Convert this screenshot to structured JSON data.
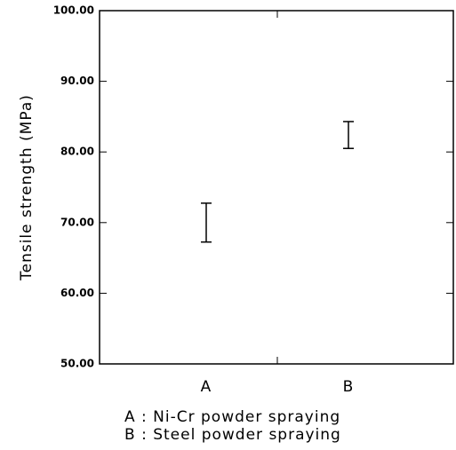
{
  "chart_data": {
    "type": "errorbar",
    "ylabel": "Tensile strength (MPa)",
    "categories": [
      "A",
      "B"
    ],
    "series": [
      {
        "color": "#000000",
        "values": [
          70,
          82.4
        ],
        "errors": [
          2.75,
          1.9
        ]
      }
    ],
    "ylim": [
      50,
      100
    ],
    "yticks": [
      {
        "value": 50,
        "label": "50.00"
      },
      {
        "value": 60,
        "label": "60.00"
      },
      {
        "value": 70,
        "label": "70.00"
      },
      {
        "value": 80,
        "label": "80.00"
      },
      {
        "value": 90,
        "label": "90.00"
      },
      {
        "value": 100,
        "label": "100.00"
      }
    ],
    "notes": [
      "A : Ni-Cr powder spraying",
      "B : Steel powder spraying"
    ]
  }
}
